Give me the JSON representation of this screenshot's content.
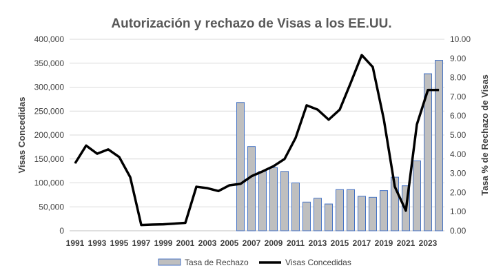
{
  "chart_data": {
    "type": "bar+line",
    "title": "Autorización y rechazo de Visas a los EE.UU.",
    "ylabel_left": "Visas Concedidas",
    "ylabel_right": "Tasa % de Rechazo de Visas",
    "ylim_left": [
      0,
      400000
    ],
    "ylim_right": [
      0,
      10
    ],
    "yticks_left": [
      "0",
      "50,000",
      "100,000",
      "150,000",
      "200,000",
      "250,000",
      "300,000",
      "350,000",
      "400,000"
    ],
    "yticks_right": [
      "0.00",
      "1.00",
      "2.00",
      "3.00",
      "4.00",
      "5.00",
      "6.00",
      "7.00",
      "8.00",
      "9.00",
      "10.00"
    ],
    "grid": true,
    "legend_position": "bottom",
    "categories": [
      1991,
      1992,
      1993,
      1994,
      1995,
      1996,
      1997,
      1998,
      1999,
      2000,
      2001,
      2002,
      2003,
      2004,
      2005,
      2006,
      2007,
      2008,
      2009,
      2010,
      2011,
      2012,
      2013,
      2014,
      2015,
      2016,
      2017,
      2018,
      2019,
      2020,
      2021,
      2022,
      2023,
      2024
    ],
    "series": [
      {
        "name": "Tasa de Rechazo",
        "type": "bar",
        "axis": "right",
        "color": "#bfbfbf",
        "edge": "#4472c4",
        "values": [
          null,
          null,
          null,
          null,
          null,
          null,
          null,
          null,
          null,
          null,
          null,
          null,
          null,
          null,
          null,
          6.7,
          4.4,
          3.1,
          3.3,
          3.1,
          2.5,
          1.5,
          1.7,
          1.4,
          2.15,
          2.15,
          1.8,
          1.75,
          2.1,
          2.8,
          2.35,
          3.65,
          8.2,
          8.9
        ]
      },
      {
        "name": "Visas Concedidas",
        "type": "line",
        "axis": "left",
        "color": "#000000",
        "values": [
          141000,
          178000,
          161000,
          170000,
          154000,
          112000,
          12000,
          13000,
          13500,
          15000,
          16500,
          92000,
          89000,
          83000,
          95000,
          98000,
          114000,
          124000,
          135000,
          150000,
          194000,
          262000,
          253000,
          232000,
          253000,
          309000,
          367000,
          342000,
          233000,
          92000,
          42000,
          222000,
          294000,
          294000
        ]
      }
    ]
  }
}
